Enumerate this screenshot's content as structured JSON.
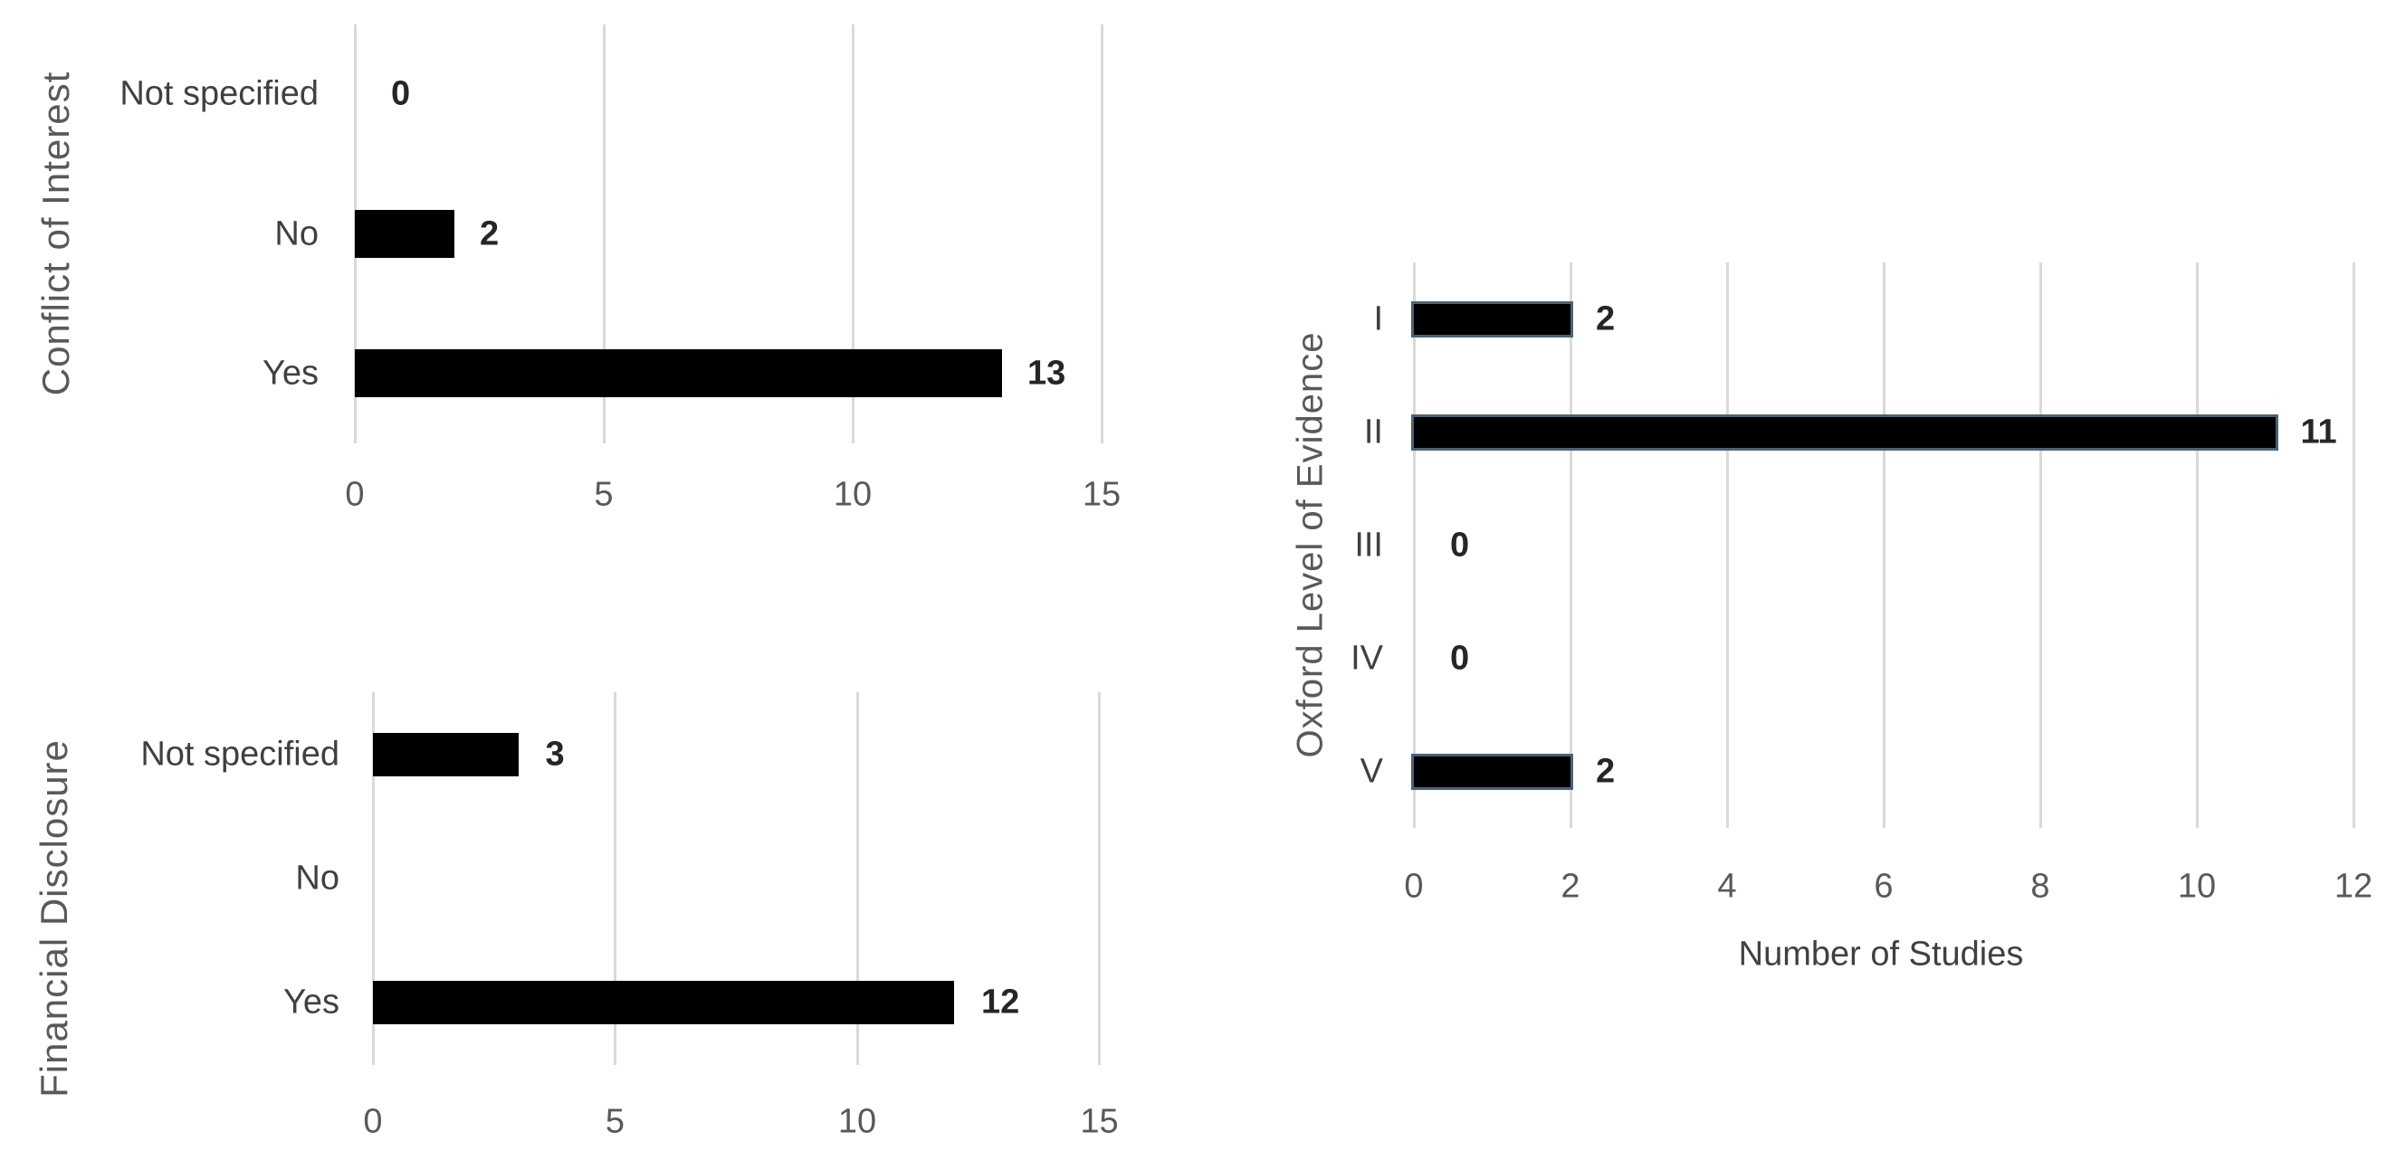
{
  "page": {
    "background": "#ffffff"
  },
  "styles": {
    "bar_fill": "#000000",
    "oxford_bar_border": "#4a6378",
    "gridline_color": "#d9d9d9",
    "category_label_color": "#404040",
    "value_label_color": "#262626",
    "tick_label_color": "#595959",
    "axis_title_color": "#595959"
  },
  "chart_data": [
    {
      "id": "conflict-of-interest",
      "type": "bar",
      "orientation": "horizontal",
      "y_axis_title": "Conflict of Interest",
      "categories": [
        "Not specified",
        "No",
        "Yes"
      ],
      "values": [
        0,
        2,
        13
      ],
      "value_labels": [
        "0",
        "2",
        "13"
      ],
      "x_ticks": [
        0,
        5,
        10,
        15
      ],
      "x_tick_labels": [
        "0",
        "5",
        "10",
        "15"
      ],
      "xlim": [
        0,
        15
      ],
      "xlabel": "",
      "grid": true,
      "legend": false,
      "bar_color": "#000000"
    },
    {
      "id": "financial-disclosure",
      "type": "bar",
      "orientation": "horizontal",
      "y_axis_title": "Financial Disclosure",
      "categories": [
        "Not specified",
        "No",
        "Yes"
      ],
      "values": [
        3,
        0,
        12
      ],
      "value_labels": [
        "3",
        "",
        "12"
      ],
      "x_ticks": [
        0,
        5,
        10,
        15
      ],
      "x_tick_labels": [
        "0",
        "5",
        "10",
        "15"
      ],
      "xlim": [
        0,
        15
      ],
      "xlabel": "",
      "grid": true,
      "legend": false,
      "bar_color": "#000000"
    },
    {
      "id": "oxford-level-of-evidence",
      "type": "bar",
      "orientation": "horizontal",
      "y_axis_title": "Oxford Level of Evidence",
      "categories": [
        "I",
        "II",
        "III",
        "IV",
        "V"
      ],
      "values": [
        2,
        11,
        0,
        0,
        2
      ],
      "value_labels": [
        "2",
        "11",
        "0",
        "0",
        "2"
      ],
      "x_ticks": [
        0,
        2,
        4,
        6,
        8,
        10,
        12
      ],
      "x_tick_labels": [
        "0",
        "2",
        "4",
        "6",
        "8",
        "10",
        "12"
      ],
      "xlim": [
        0,
        12
      ],
      "xlabel": "Number of Studies",
      "grid": true,
      "legend": false,
      "bar_color": "#000000",
      "bar_border_color": "#4a6378"
    }
  ]
}
